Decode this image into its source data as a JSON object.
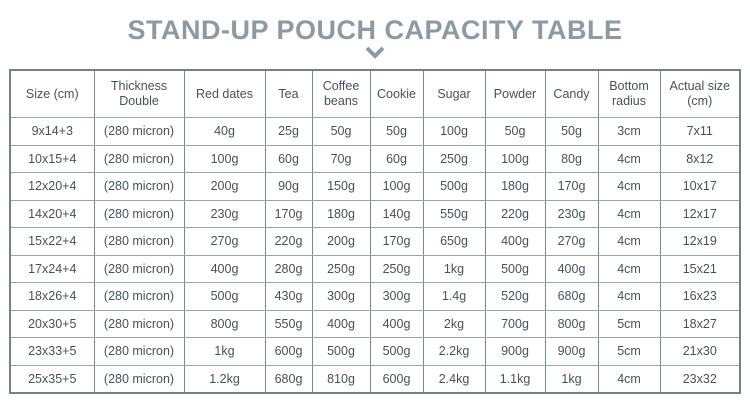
{
  "title": "STAND-UP POUCH CAPACITY TABLE",
  "icons": {
    "chevron": "chevron-down"
  },
  "colors": {
    "title_text": "#8c9aa3",
    "table_text": "#45525c",
    "border_outer": "#75818a",
    "border_inner": "#9aa4ab",
    "background": "#ffffff"
  },
  "chart_data": {
    "type": "table",
    "title": "STAND-UP POUCH CAPACITY TABLE",
    "columns": [
      "Size (cm)",
      "Thickness Double",
      "Red dates",
      "Tea",
      "Coffee beans",
      "Cookie",
      "Sugar",
      "Powder",
      "Candy",
      "Bottom radius",
      "Actual size (cm)"
    ],
    "rows": [
      [
        "9x14+3",
        "(280 micron)",
        "40g",
        "25g",
        "50g",
        "50g",
        "100g",
        "50g",
        "50g",
        "3cm",
        "7x11"
      ],
      [
        "10x15+4",
        "(280 micron)",
        "100g",
        "60g",
        "70g",
        "60g",
        "250g",
        "100g",
        "80g",
        "4cm",
        "8x12"
      ],
      [
        "12x20+4",
        "(280 micron)",
        "200g",
        "90g",
        "150g",
        "100g",
        "500g",
        "180g",
        "170g",
        "4cm",
        "10x17"
      ],
      [
        "14x20+4",
        "(280 micron)",
        "230g",
        "170g",
        "180g",
        "140g",
        "550g",
        "220g",
        "230g",
        "4cm",
        "12x17"
      ],
      [
        "15x22+4",
        "(280 micron)",
        "270g",
        "220g",
        "200g",
        "170g",
        "650g",
        "400g",
        "270g",
        "4cm",
        "12x19"
      ],
      [
        "17x24+4",
        "(280 micron)",
        "400g",
        "280g",
        "250g",
        "250g",
        "1kg",
        "500g",
        "400g",
        "4cm",
        "15x21"
      ],
      [
        "18x26+4",
        "(280 micron)",
        "500g",
        "430g",
        "300g",
        "300g",
        "1.4g",
        "520g",
        "680g",
        "4cm",
        "16x23"
      ],
      [
        "20x30+5",
        "(280 micron)",
        "800g",
        "550g",
        "400g",
        "400g",
        "2kg",
        "700g",
        "800g",
        "5cm",
        "18x27"
      ],
      [
        "23x33+5",
        "(280 micron)",
        "1kg",
        "600g",
        "500g",
        "500g",
        "2.2kg",
        "900g",
        "900g",
        "5cm",
        "21x30"
      ],
      [
        "25x35+5",
        "(280 micron)",
        "1.2kg",
        "680g",
        "810g",
        "600g",
        "2.4kg",
        "1.1kg",
        "1kg",
        "4cm",
        "23x32"
      ]
    ]
  }
}
